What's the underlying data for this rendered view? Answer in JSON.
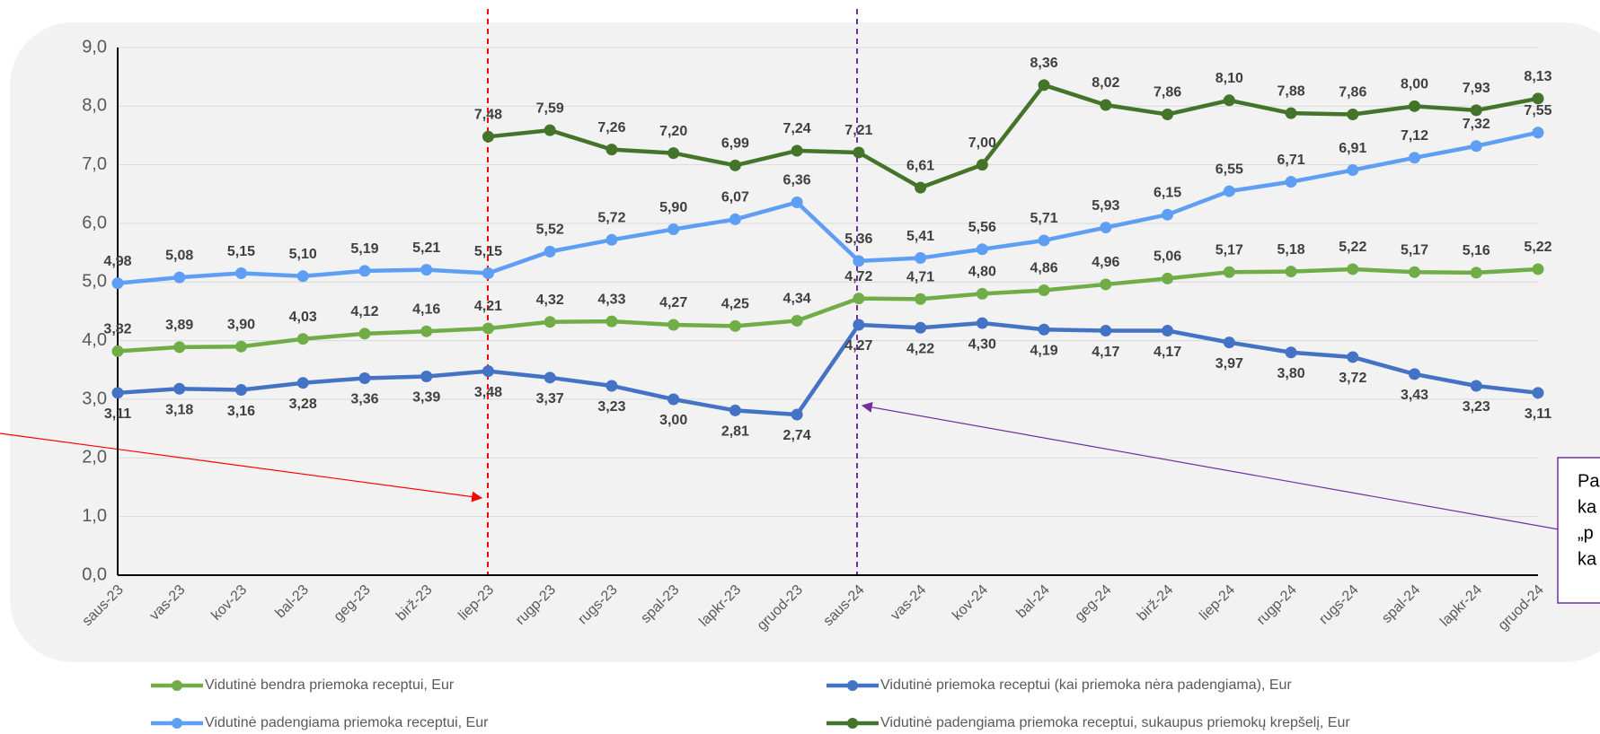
{
  "chart_data": {
    "type": "line",
    "categories": [
      "saus-23",
      "vas-23",
      "kov-23",
      "bal-23",
      "geg-23",
      "birž-23",
      "liep-23",
      "rugp-23",
      "rugs-23",
      "spal-23",
      "lapkr-23",
      "gruod-23",
      "saus-24",
      "vas-24",
      "kov-24",
      "bal-24",
      "geg-24",
      "birž-24",
      "liep-24",
      "rugp-24",
      "rugs-24",
      "spal-24",
      "lapkr-24",
      "gruod-24"
    ],
    "series": [
      {
        "name": "Vidutinė bendra priemoka receptui, Eur",
        "color": "#70ad47",
        "values": [
          3.82,
          3.89,
          3.9,
          4.03,
          4.12,
          4.16,
          4.21,
          4.32,
          4.33,
          4.27,
          4.25,
          4.34,
          4.72,
          4.71,
          4.8,
          4.86,
          4.96,
          5.06,
          5.17,
          5.18,
          5.22,
          5.17,
          5.16,
          5.22
        ],
        "value_labels": [
          "3,82",
          "3,89",
          "3,90",
          "4,03",
          "4,12",
          "4,16",
          "4,21",
          "4,32",
          "4,33",
          "4,27",
          "4,25",
          "4,34",
          "4,72",
          "4,71",
          "4,80",
          "4,86",
          "4,96",
          "5,06",
          "5,17",
          "5,18",
          "5,22",
          "5,17",
          "5,16",
          "5,22"
        ]
      },
      {
        "name": "Vidutinė padengiama priemoka receptui, Eur",
        "color": "#5f9ef5",
        "values": [
          4.98,
          5.08,
          5.15,
          5.1,
          5.19,
          5.21,
          5.15,
          5.52,
          5.72,
          5.9,
          6.07,
          6.36,
          5.36,
          5.41,
          5.56,
          5.71,
          5.93,
          6.15,
          6.55,
          6.71,
          6.91,
          7.12,
          7.32,
          7.55
        ],
        "value_labels": [
          "4,98",
          "5,08",
          "5,15",
          "5,10",
          "5,19",
          "5,21",
          "5,15",
          "5,52",
          "5,72",
          "5,90",
          "6,07",
          "6,36",
          "5,36",
          "5,41",
          "5,56",
          "5,71",
          "5,93",
          "6,15",
          "6,55",
          "6,71",
          "6,91",
          "7,12",
          "7,32",
          "7,55"
        ]
      },
      {
        "name": "Vidutinė priemoka receptui (kai priemoka nėra padengiama), Eur",
        "color": "#4472c4",
        "values": [
          3.11,
          3.18,
          3.16,
          3.28,
          3.36,
          3.39,
          3.48,
          3.37,
          3.23,
          3.0,
          2.81,
          2.74,
          4.27,
          4.22,
          4.3,
          4.19,
          4.17,
          4.17,
          3.97,
          3.8,
          3.72,
          3.43,
          3.23,
          3.11
        ],
        "value_labels": [
          "3,11",
          "3,18",
          "3,16",
          "3,28",
          "3,36",
          "3,39",
          "3,48",
          "3,37",
          "3,23",
          "3,00",
          "2,81",
          "2,74",
          "4,27",
          "4,22",
          "4,30",
          "4,19",
          "4,17",
          "4,17",
          "3,97",
          "3,80",
          "3,72",
          "3,43",
          "3,23",
          "3,11"
        ]
      },
      {
        "name": "Vidutinė padengiama priemoka receptui, sukaupus priemokų krepšelį, Eur",
        "color": "#44742a",
        "values": [
          null,
          null,
          null,
          null,
          null,
          null,
          7.48,
          7.59,
          7.26,
          7.2,
          6.99,
          7.24,
          7.21,
          6.61,
          7.0,
          8.36,
          8.02,
          7.86,
          8.1,
          7.88,
          7.86,
          8.0,
          7.93,
          8.13
        ],
        "value_labels": [
          null,
          null,
          null,
          null,
          null,
          null,
          "7,48",
          "7,59",
          "7,26",
          "7,20",
          "6,99",
          "7,24",
          "7,21",
          "6,61",
          "7,00",
          "8,36",
          "8,02",
          "7,86",
          "8,10",
          "7,88",
          "7,86",
          "8,00",
          "7,93",
          "8,13"
        ]
      }
    ],
    "ylim": [
      0,
      9
    ],
    "yticks": [
      {
        "value": 0,
        "label": "0,0"
      },
      {
        "value": 1,
        "label": "1,0"
      },
      {
        "value": 2,
        "label": "2,0"
      },
      {
        "value": 3,
        "label": "3,0"
      },
      {
        "value": 4,
        "label": "4,0"
      },
      {
        "value": 5,
        "label": "5,0"
      },
      {
        "value": 6,
        "label": "6,0"
      },
      {
        "value": 7,
        "label": "7,0"
      },
      {
        "value": 8,
        "label": "8,0"
      },
      {
        "value": 9,
        "label": "9,0"
      }
    ],
    "grid": true,
    "legend": "bottom",
    "annotation": [
      "Pa",
      "ka",
      "„p",
      "ka"
    ]
  }
}
